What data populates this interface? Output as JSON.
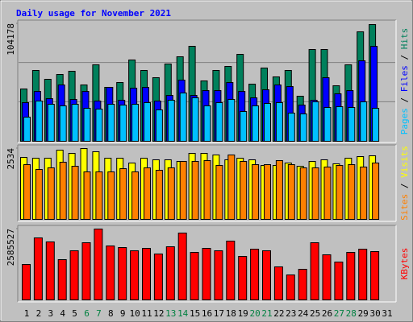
{
  "chart_data": [
    {
      "type": "bar",
      "title": "Daily usage for November 2021",
      "legend_separator": " / ",
      "series": [
        {
          "name": "Hits",
          "color": "#00805c",
          "values": [
            46380,
            62790,
            54940,
            59220,
            62080,
            49950,
            67790,
            47810,
            52090,
            72070,
            62790,
            56370,
            68500,
            74920,
            84200,
            53520,
            62790,
            66360,
            77060,
            50660,
            64930,
            57080,
            62790,
            39960,
            81340,
            81340,
            49230,
            67790,
            97040,
            103460,
            null
          ]
        },
        {
          "name": "Files",
          "color": "#0000ff",
          "values": [
            34250,
            44240,
            37820,
            49950,
            37100,
            44240,
            35680,
            47810,
            36390,
            47090,
            47810,
            35680,
            40670,
            54230,
            40670,
            44950,
            44950,
            52090,
            44240,
            38530,
            45670,
            49950,
            48520,
            32110,
            36390,
            56370,
            42100,
            44950,
            71350,
            84200,
            null
          ]
        },
        {
          "name": "Pages",
          "color": "#00c0ff",
          "values": [
            21410,
            35680,
            32820,
            31400,
            32820,
            29250,
            28540,
            32820,
            32110,
            32820,
            34250,
            27830,
            36390,
            42810,
            38530,
            31400,
            34250,
            37100,
            26400,
            31400,
            33540,
            34250,
            24970,
            24260,
            34960,
            29970,
            30680,
            29970,
            34960,
            29250,
            null
          ]
        }
      ],
      "ylim": [
        0,
        104178
      ],
      "yticks": [
        104178
      ],
      "grid": true
    },
    {
      "type": "bar",
      "legend_separator": " / ",
      "series": [
        {
          "name": "Visits",
          "color": "#ffff00",
          "values": [
            2217,
            2188,
            2188,
            2476,
            2361,
            2534,
            2419,
            2188,
            2188,
            2016,
            2188,
            2131,
            2131,
            2073,
            2361,
            2361,
            2304,
            2131,
            2188,
            2131,
            1929,
            1929,
            2016,
            1900,
            2073,
            2131,
            1987,
            2188,
            2246,
            2275,
            null
          ]
        },
        {
          "name": "Sites",
          "color": "#ff8000",
          "values": [
            1958,
            1785,
            1843,
            2044,
            1900,
            1699,
            1699,
            1699,
            1814,
            1699,
            1843,
            1756,
            1843,
            2073,
            2073,
            2102,
            1929,
            2304,
            2073,
            1958,
            1958,
            2102,
            1958,
            1843,
            1843,
            1872,
            1929,
            1958,
            1872,
            2016,
            null
          ]
        }
      ],
      "ylim": [
        0,
        2534
      ],
      "yticks": [
        2534
      ],
      "grid": false
    },
    {
      "type": "bar",
      "categories": [
        "1",
        "2",
        "3",
        "4",
        "5",
        "6",
        "7",
        "8",
        "9",
        "10",
        "11",
        "12",
        "13",
        "14",
        "15",
        "16",
        "17",
        "18",
        "19",
        "20",
        "21",
        "22",
        "23",
        "24",
        "25",
        "26",
        "27",
        "28",
        "29",
        "30",
        "31"
      ],
      "category_colors": [
        "#000000",
        "#000000",
        "#000000",
        "#000000",
        "#000000",
        "#008040",
        "#008040",
        "#000000",
        "#000000",
        "#000000",
        "#000000",
        "#000000",
        "#008040",
        "#008040",
        "#000000",
        "#000000",
        "#000000",
        "#000000",
        "#000000",
        "#008040",
        "#008040",
        "#000000",
        "#000000",
        "#000000",
        "#000000",
        "#000000",
        "#008040",
        "#008040",
        "#000000",
        "#000000",
        "#000000"
      ],
      "series": [
        {
          "name": "KBytes",
          "color": "#ff0000",
          "values": [
            1292764,
            2262336,
            2115431,
            1469049,
            1792240,
            2086050,
            2585527,
            1968526,
            1909764,
            1792240,
            1880383,
            1674716,
            1939145,
            2438622,
            1733484,
            1880383,
            1792240,
            2144812,
            1586573,
            1851025,
            1792240,
            1204621,
            910809,
            1116477,
            2086050,
            1645335,
            1380905,
            1733484,
            1851025,
            1762859,
            null
          ]
        }
      ],
      "ylim": [
        0,
        2585527
      ],
      "yticks": [
        2585527
      ],
      "grid": false
    }
  ]
}
